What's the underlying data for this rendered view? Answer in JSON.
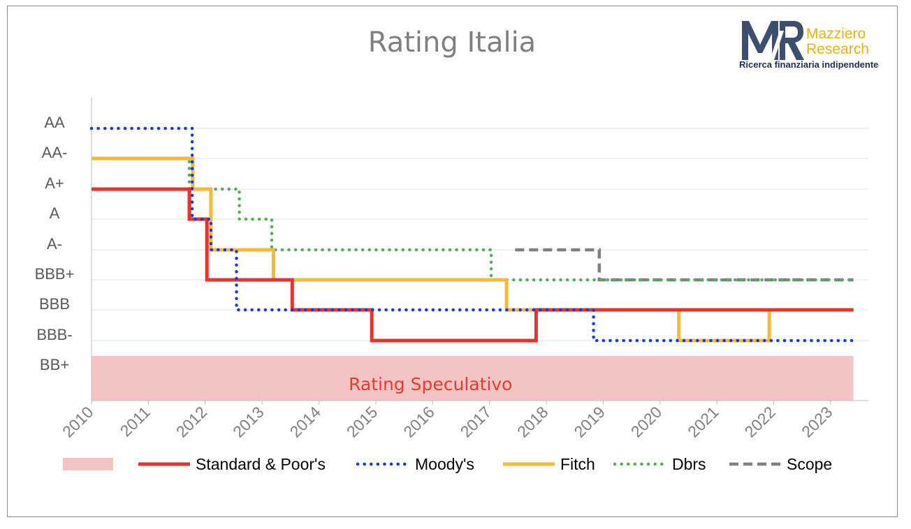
{
  "logo": {
    "monogram": "MR",
    "name_line1": "Mazziero",
    "name_line2": "Research",
    "tagline": "Ricerca finanziaria indipendente",
    "colors": {
      "monogram": "#3d4f6e",
      "name": "#e8b21c",
      "tagline": "#1e2d4e"
    }
  },
  "chart_data": {
    "type": "line",
    "title": "Rating Italia",
    "x_ticks": [
      "2010",
      "2011",
      "2012",
      "2013",
      "2014",
      "2015",
      "2016",
      "2017",
      "2018",
      "2019",
      "2020",
      "2021",
      "2022",
      "2023"
    ],
    "xlim": [
      2010,
      2023.4
    ],
    "y_ticks": [
      "AA",
      "AA-",
      "A+",
      "A",
      "A-",
      "BBB+",
      "BBB",
      "BBB-",
      "BB+"
    ],
    "grid": true,
    "shaded_region": {
      "label": "Rating Speculativo",
      "from_rating": "BB+",
      "to_x": 2023.4,
      "color": "#f4c4c4",
      "label_color": "#e63a2e"
    },
    "series": [
      {
        "name": "Standard & Poor's",
        "style": "solid",
        "color": "#e8332a",
        "points": [
          [
            2010,
            "A+"
          ],
          [
            2011.72,
            "A+"
          ],
          [
            2011.72,
            "A"
          ],
          [
            2012.03,
            "A"
          ],
          [
            2012.03,
            "BBB+"
          ],
          [
            2013.53,
            "BBB+"
          ],
          [
            2013.53,
            "BBB"
          ],
          [
            2014.93,
            "BBB"
          ],
          [
            2014.93,
            "BBB-"
          ],
          [
            2017.82,
            "BBB-"
          ],
          [
            2017.82,
            "BBB"
          ],
          [
            2023.4,
            "BBB"
          ]
        ]
      },
      {
        "name": "Moody's",
        "style": "dotted",
        "color": "#1739e6",
        "points": [
          [
            2010,
            "AA"
          ],
          [
            2011.77,
            "AA"
          ],
          [
            2011.77,
            "A+"
          ],
          [
            2011.77,
            "A"
          ],
          [
            2012.1,
            "A"
          ],
          [
            2012.1,
            "A-"
          ],
          [
            2012.55,
            "A-"
          ],
          [
            2012.55,
            "BBB"
          ],
          [
            2018.83,
            "BBB"
          ],
          [
            2018.83,
            "BBB-"
          ],
          [
            2023.4,
            "BBB-"
          ]
        ]
      },
      {
        "name": "Fitch",
        "style": "solid",
        "color": "#f5b935",
        "points": [
          [
            2010,
            "AA-"
          ],
          [
            2011.78,
            "AA-"
          ],
          [
            2011.78,
            "A+"
          ],
          [
            2012.1,
            "A+"
          ],
          [
            2012.1,
            "A-"
          ],
          [
            2013.2,
            "A-"
          ],
          [
            2013.2,
            "BBB+"
          ],
          [
            2017.3,
            "BBB+"
          ],
          [
            2017.3,
            "BBB"
          ],
          [
            2020.33,
            "BBB"
          ],
          [
            2020.33,
            "BBB-"
          ],
          [
            2021.92,
            "BBB-"
          ],
          [
            2021.92,
            "BBB"
          ],
          [
            2023.4,
            "BBB"
          ]
        ]
      },
      {
        "name": "Dbrs",
        "style": "dotted",
        "color": "#55ad5a",
        "points": [
          [
            2011.07,
            "AA-"
          ],
          [
            2011.72,
            "AA-"
          ],
          [
            2011.72,
            "A+"
          ],
          [
            2012.6,
            "A+"
          ],
          [
            2012.6,
            "A"
          ],
          [
            2013.17,
            "A"
          ],
          [
            2013.17,
            "A-"
          ],
          [
            2017.03,
            "A-"
          ],
          [
            2017.03,
            "BBB+"
          ],
          [
            2023.4,
            "BBB+"
          ]
        ]
      },
      {
        "name": "Scope",
        "style": "dashed",
        "color": "#808080",
        "points": [
          [
            2017.45,
            "A-"
          ],
          [
            2018.93,
            "A-"
          ],
          [
            2018.93,
            "BBB+"
          ],
          [
            2023.4,
            "BBB+"
          ]
        ]
      }
    ]
  }
}
